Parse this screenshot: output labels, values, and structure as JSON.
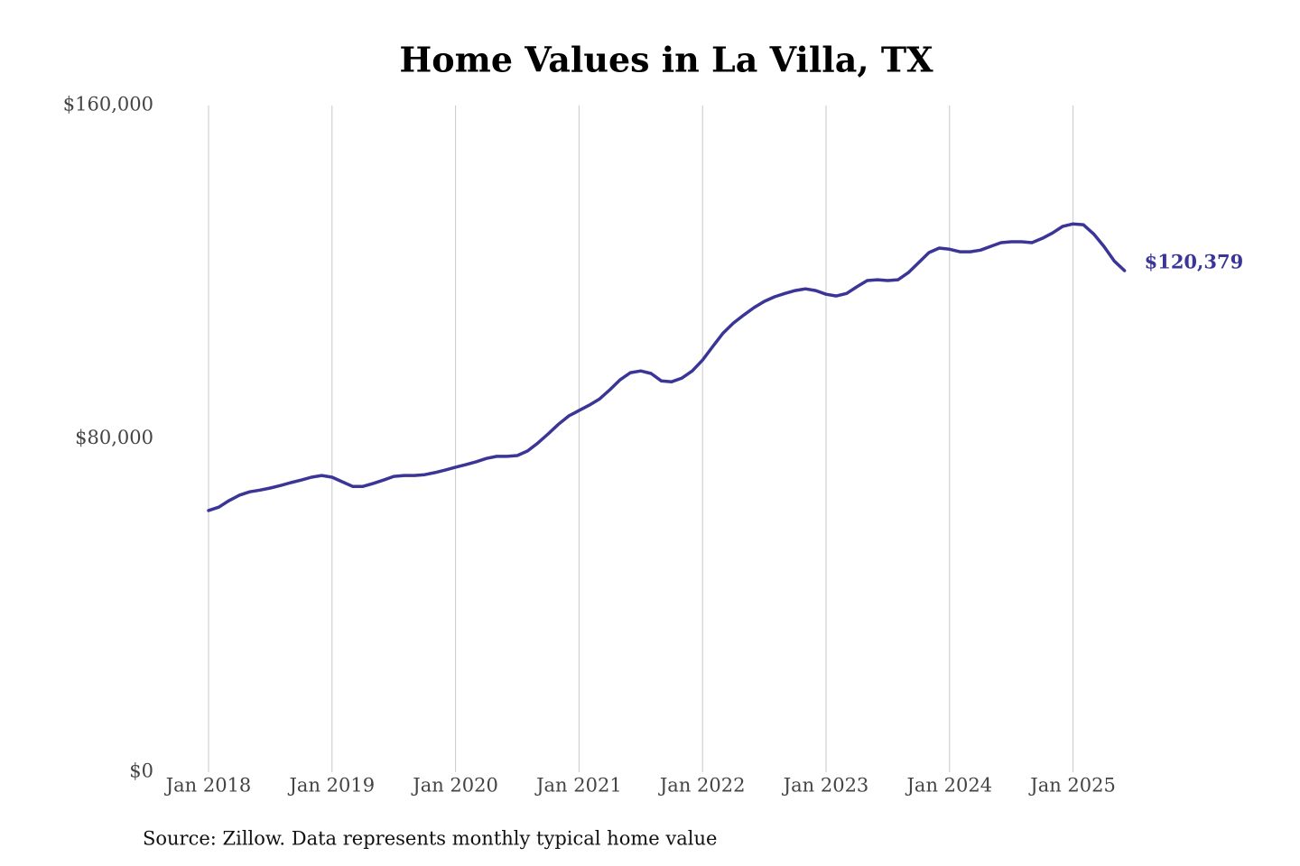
{
  "chart_data": {
    "type": "line",
    "title": "Home Values in La Villa, TX",
    "source": "Source: Zillow. Data represents monthly typical home value",
    "x": [
      "2018-01",
      "2018-02",
      "2018-03",
      "2018-04",
      "2018-05",
      "2018-06",
      "2018-07",
      "2018-08",
      "2018-09",
      "2018-10",
      "2018-11",
      "2018-12",
      "2019-01",
      "2019-02",
      "2019-03",
      "2019-04",
      "2019-05",
      "2019-06",
      "2019-07",
      "2019-08",
      "2019-09",
      "2019-10",
      "2019-11",
      "2019-12",
      "2020-01",
      "2020-02",
      "2020-03",
      "2020-04",
      "2020-05",
      "2020-06",
      "2020-07",
      "2020-08",
      "2020-09",
      "2020-10",
      "2020-11",
      "2020-12",
      "2021-01",
      "2021-02",
      "2021-03",
      "2021-04",
      "2021-05",
      "2021-06",
      "2021-07",
      "2021-08",
      "2021-09",
      "2021-10",
      "2021-11",
      "2021-12",
      "2022-01",
      "2022-02",
      "2022-03",
      "2022-04",
      "2022-05",
      "2022-06",
      "2022-07",
      "2022-08",
      "2022-09",
      "2022-10",
      "2022-11",
      "2022-12",
      "2023-01",
      "2023-02",
      "2023-03",
      "2023-04",
      "2023-05",
      "2023-06",
      "2023-07",
      "2023-08",
      "2023-09",
      "2023-10",
      "2023-11",
      "2023-12",
      "2024-01",
      "2024-02",
      "2024-03",
      "2024-04",
      "2024-05",
      "2024-06",
      "2024-07",
      "2024-08",
      "2024-09",
      "2024-10",
      "2024-11",
      "2024-12",
      "2025-01",
      "2025-02",
      "2025-03",
      "2025-04",
      "2025-05",
      "2025-06"
    ],
    "series": [
      {
        "color": "#3a3597",
        "values": [
          62800,
          63600,
          65200,
          66500,
          67300,
          67700,
          68200,
          68800,
          69500,
          70100,
          70800,
          71200,
          70800,
          69700,
          68600,
          68600,
          69300,
          70100,
          71000,
          71200,
          71200,
          71400,
          71900,
          72500,
          73200,
          73800,
          74500,
          75300,
          75800,
          75800,
          76000,
          77100,
          79000,
          81200,
          83500,
          85500,
          86800,
          88100,
          89600,
          91800,
          94200,
          95900,
          96300,
          95700,
          93900,
          93700,
          94600,
          96300,
          98900,
          102200,
          105400,
          107800,
          109700,
          111500,
          113000,
          114100,
          114900,
          115600,
          116000,
          115600,
          114700,
          114300,
          114900,
          116500,
          118000,
          118200,
          118000,
          118200,
          119900,
          122300,
          124700,
          125800,
          125500,
          124900,
          124900,
          125300,
          126200,
          127100,
          127300,
          127300,
          127100,
          128100,
          129400,
          131000,
          131600,
          131400,
          129200,
          126200,
          122700,
          120379
        ],
        "value_labels": [
          null,
          null,
          null,
          null,
          null,
          null,
          null,
          null,
          null,
          null,
          null,
          null,
          null,
          null,
          null,
          null,
          null,
          null,
          null,
          null,
          null,
          null,
          null,
          null,
          null,
          null,
          null,
          null,
          null,
          null,
          null,
          null,
          null,
          null,
          null,
          null,
          null,
          null,
          null,
          null,
          null,
          null,
          null,
          null,
          null,
          null,
          null,
          null,
          null,
          null,
          null,
          null,
          null,
          null,
          null,
          null,
          null,
          null,
          null,
          null,
          null,
          null,
          null,
          null,
          null,
          null,
          null,
          null,
          null,
          null,
          null,
          null,
          null,
          null,
          null,
          null,
          null,
          null,
          null,
          null,
          null,
          null,
          null,
          null,
          null,
          null,
          null,
          null,
          null,
          "$120,379"
        ]
      }
    ],
    "xticks": [
      {
        "value": "2018-01",
        "label": "Jan 2018"
      },
      {
        "value": "2019-01",
        "label": "Jan 2019"
      },
      {
        "value": "2020-01",
        "label": "Jan 2020"
      },
      {
        "value": "2021-01",
        "label": "Jan 2021"
      },
      {
        "value": "2022-01",
        "label": "Jan 2022"
      },
      {
        "value": "2023-01",
        "label": "Jan 2023"
      },
      {
        "value": "2024-01",
        "label": "Jan 2024"
      },
      {
        "value": "2025-01",
        "label": "Jan 2025"
      }
    ],
    "ylim": [
      0,
      160000
    ],
    "yticks": [
      {
        "value": 0,
        "label": "$0"
      },
      {
        "value": 80000,
        "label": "$80,000"
      },
      {
        "value": 160000,
        "label": "$160,000"
      }
    ],
    "grid": "x"
  }
}
